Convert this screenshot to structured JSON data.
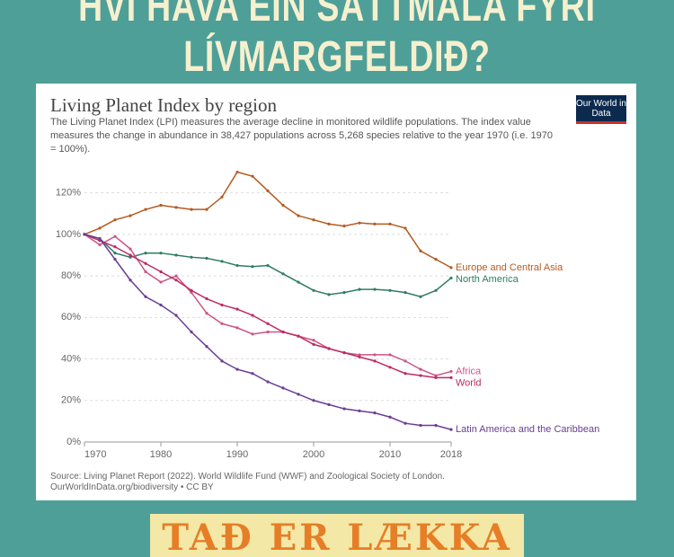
{
  "header": {
    "line1": "HVÍ HAVA EIN SÁTTMÁLA FYRI",
    "line2": "LÍVMARGFELDIÐ?"
  },
  "chart_data": {
    "type": "line",
    "title": "Living Planet Index by region",
    "subtitle": "The Living Planet Index (LPI) measures the average decline in monitored wildlife populations. The index value measures the change in abundance in 38,427 populations across 5,268 species relative to the year 1970 (i.e. 1970 = 100%).",
    "logo": "Our World in Data",
    "source": "Source: Living Planet Report (2022). World Wildlife Fund (WWF) and Zoological Society of London.",
    "source_url": "OurWorldInData.org/biodiversity • CC BY",
    "x": [
      1970,
      1972,
      1974,
      1976,
      1978,
      1980,
      1982,
      1984,
      1986,
      1988,
      1990,
      1992,
      1994,
      1996,
      1998,
      2000,
      2002,
      2004,
      2006,
      2008,
      2010,
      2012,
      2014,
      2016,
      2018
    ],
    "xlim": [
      1970,
      2018
    ],
    "xticks": [
      1970,
      1980,
      1990,
      2000,
      2010,
      2018
    ],
    "ylim": [
      0,
      135
    ],
    "yticks": [
      {
        "value": 0,
        "label": "0%"
      },
      {
        "value": 20,
        "label": "20%"
      },
      {
        "value": 40,
        "label": "40%"
      },
      {
        "value": 60,
        "label": "60%"
      },
      {
        "value": 80,
        "label": "80%"
      },
      {
        "value": 100,
        "label": "100%"
      },
      {
        "value": 120,
        "label": "120%"
      }
    ],
    "grid": true,
    "series": [
      {
        "name": "Europe and Central Asia",
        "color": "#b45a1f",
        "values": [
          100,
          103,
          107,
          109,
          112,
          114,
          113,
          112,
          112,
          118,
          130,
          128,
          121,
          114,
          109,
          107,
          105,
          104,
          105.5,
          105,
          105,
          103,
          92,
          88,
          84
        ]
      },
      {
        "name": "North America",
        "color": "#2e7d63",
        "values": [
          100,
          98,
          91,
          89,
          91,
          91,
          90,
          89,
          88.5,
          87,
          85,
          84.5,
          85,
          81,
          77,
          73,
          71,
          72,
          73.5,
          73.5,
          73,
          72,
          70,
          73,
          79
        ]
      },
      {
        "name": "Africa",
        "color": "#cc5584",
        "values": [
          100,
          95,
          99,
          93,
          82,
          77,
          80,
          72,
          62,
          57,
          55,
          52,
          53,
          53,
          51,
          49,
          45,
          43,
          42,
          42,
          42,
          39,
          35,
          32,
          34
        ]
      },
      {
        "name": "World",
        "color": "#be2a63",
        "values": [
          100,
          97,
          94,
          90,
          86,
          82,
          78,
          73,
          69,
          66,
          64,
          61,
          57,
          53,
          51,
          47,
          45,
          43,
          41,
          39,
          36,
          33,
          32,
          31,
          31
        ]
      },
      {
        "name": "Latin America and the Caribbean",
        "color": "#6a3d93",
        "values": [
          100,
          98,
          88,
          78,
          70,
          66,
          61,
          53,
          46,
          39,
          35,
          33,
          29,
          26,
          23,
          20,
          18,
          16,
          15,
          14,
          12,
          9,
          8,
          8,
          6
        ]
      }
    ]
  },
  "banner": "TAÐ ER LÆKKA"
}
